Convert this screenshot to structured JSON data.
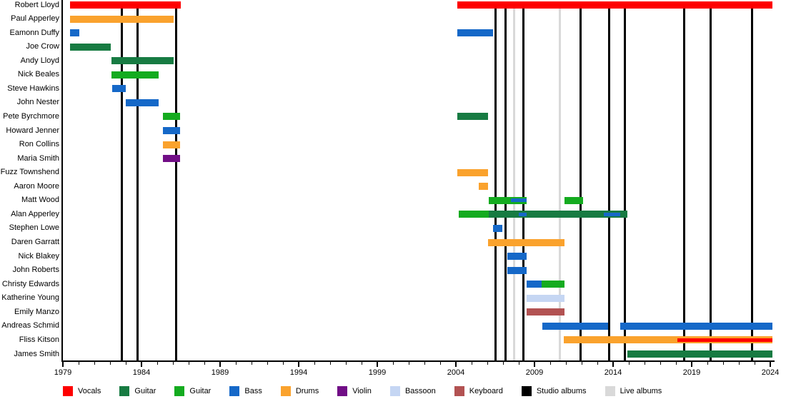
{
  "chart_data": {
    "type": "bar",
    "variant": "band-member-gantt-timeline",
    "title": "",
    "xlabel": "",
    "ylabel": "",
    "grid": false,
    "x_axis": {
      "min": 1979,
      "max": 2024,
      "minor_tick_interval": 1,
      "label_interval": 5,
      "tick_labels": [
        "1979",
        "1984",
        "1989",
        "1994",
        "1999",
        "2004",
        "2009",
        "2014",
        "2019",
        "2024"
      ]
    },
    "colors": {
      "vocals": "#fe0000",
      "guitar_dark": "#177b42",
      "guitar_bright": "#14ab1f",
      "bass": "#1568c8",
      "drums": "#faa22d",
      "violin": "#710e86",
      "bassoon": "#c5d6f3",
      "keyboard": "#b25252",
      "studio": "#000000",
      "live": "#d9d9d9"
    },
    "rows": [
      {
        "name": "Robert Lloyd",
        "bars": [
          {
            "from": 1979.45,
            "to": 1986.5,
            "role": "Vocals",
            "color_key": "vocals"
          },
          {
            "from": 2004.1,
            "to": 2024.15,
            "role": "Vocals",
            "color_key": "vocals"
          }
        ]
      },
      {
        "name": "Paul Apperley",
        "bars": [
          {
            "from": 1979.45,
            "to": 1986.05,
            "role": "Drums",
            "color_key": "drums"
          }
        ]
      },
      {
        "name": "Eamonn Duffy",
        "bars": [
          {
            "from": 1979.45,
            "to": 1980.05,
            "role": "Bass",
            "color_key": "bass"
          },
          {
            "from": 2004.1,
            "to": 2006.35,
            "role": "Bass",
            "color_key": "bass"
          }
        ]
      },
      {
        "name": "Joe Crow",
        "bars": [
          {
            "from": 1979.45,
            "to": 1982.05,
            "role": "Guitar",
            "color_key": "guitar_dark"
          }
        ]
      },
      {
        "name": "Andy Lloyd",
        "bars": [
          {
            "from": 1982.1,
            "to": 1986.05,
            "role": "Guitar",
            "color_key": "guitar_dark"
          }
        ]
      },
      {
        "name": "Nick Beales",
        "bars": [
          {
            "from": 1982.1,
            "to": 1985.1,
            "role": "Guitar",
            "color_key": "guitar_bright"
          }
        ]
      },
      {
        "name": "Steve Hawkins",
        "bars": [
          {
            "from": 1982.15,
            "to": 1983.0,
            "role": "Bass",
            "color_key": "bass"
          }
        ]
      },
      {
        "name": "John Nester",
        "bars": [
          {
            "from": 1983.0,
            "to": 1985.1,
            "role": "Bass",
            "color_key": "bass"
          }
        ]
      },
      {
        "name": "Pete Byrchmore",
        "bars": [
          {
            "from": 1985.35,
            "to": 1986.45,
            "role": "Guitar",
            "color_key": "guitar_bright"
          },
          {
            "from": 2004.1,
            "to": 2006.05,
            "role": "Guitar",
            "color_key": "guitar_dark"
          }
        ]
      },
      {
        "name": "Howard Jenner",
        "bars": [
          {
            "from": 1985.35,
            "to": 1986.45,
            "role": "Bass",
            "color_key": "bass"
          }
        ]
      },
      {
        "name": "Ron Collins",
        "bars": [
          {
            "from": 1985.35,
            "to": 1986.45,
            "role": "Drums",
            "color_key": "drums"
          }
        ]
      },
      {
        "name": "Maria Smith",
        "bars": [
          {
            "from": 1985.35,
            "to": 1986.45,
            "role": "Violin",
            "color_key": "violin"
          }
        ]
      },
      {
        "name": "Fuzz Townshend",
        "bars": [
          {
            "from": 2004.1,
            "to": 2006.05,
            "role": "Drums",
            "color_key": "drums"
          }
        ]
      },
      {
        "name": "Aaron Moore",
        "bars": [
          {
            "from": 2005.45,
            "to": 2006.05,
            "role": "Drums",
            "color_key": "drums"
          }
        ]
      },
      {
        "name": "Matt Wood",
        "bars": [
          {
            "from": 2006.1,
            "to": 2008.5,
            "role": "Guitar",
            "color_key": "guitar_bright"
          },
          {
            "from": 2010.9,
            "to": 2012.1,
            "role": "Guitar",
            "color_key": "guitar_bright"
          }
        ],
        "overlays": [
          {
            "from": 2007.5,
            "to": 2008.5,
            "role": "Bass",
            "color_key": "bass"
          }
        ]
      },
      {
        "name": "Alan Apperley",
        "bars": [
          {
            "from": 2004.2,
            "to": 2006.1,
            "role": "Guitar",
            "color_key": "guitar_bright"
          },
          {
            "from": 2006.1,
            "to": 2014.9,
            "role": "Guitar",
            "color_key": "guitar_dark"
          }
        ],
        "overlays": [
          {
            "from": 2008.0,
            "to": 2008.5,
            "role": "Bass",
            "color_key": "bass"
          },
          {
            "from": 2013.4,
            "to": 2014.45,
            "role": "Bass",
            "color_key": "bass"
          }
        ]
      },
      {
        "name": "Stephen Lowe",
        "bars": [
          {
            "from": 2006.35,
            "to": 2006.95,
            "role": "Bass",
            "color_key": "bass"
          }
        ]
      },
      {
        "name": "Daren Garratt",
        "bars": [
          {
            "from": 2006.05,
            "to": 2010.9,
            "role": "Drums",
            "color_key": "drums"
          }
        ]
      },
      {
        "name": "Nick Blakey",
        "bars": [
          {
            "from": 2007.25,
            "to": 2008.5,
            "role": "Bass",
            "color_key": "bass"
          }
        ]
      },
      {
        "name": "John Roberts",
        "bars": [
          {
            "from": 2007.25,
            "to": 2008.5,
            "role": "Bass",
            "color_key": "bass"
          }
        ]
      },
      {
        "name": "Christy Edwards",
        "bars": [
          {
            "from": 2008.5,
            "to": 2009.45,
            "role": "Bass",
            "color_key": "bass"
          },
          {
            "from": 2009.45,
            "to": 2010.9,
            "role": "Guitar",
            "color_key": "guitar_bright"
          }
        ]
      },
      {
        "name": "Katherine Young",
        "bars": [
          {
            "from": 2008.5,
            "to": 2010.9,
            "role": "Bassoon",
            "color_key": "bassoon"
          }
        ]
      },
      {
        "name": "Emily Manzo",
        "bars": [
          {
            "from": 2008.5,
            "to": 2010.9,
            "role": "Keyboard",
            "color_key": "keyboard"
          }
        ]
      },
      {
        "name": "Andreas Schmid",
        "bars": [
          {
            "from": 2009.5,
            "to": 2013.7,
            "role": "Bass",
            "color_key": "bass"
          },
          {
            "from": 2014.45,
            "to": 2024.15,
            "role": "Bass",
            "color_key": "bass"
          }
        ]
      },
      {
        "name": "Fliss Kitson",
        "bars": [
          {
            "from": 2010.85,
            "to": 2024.15,
            "role": "Drums",
            "color_key": "drums"
          }
        ],
        "overlays": [
          {
            "from": 2018.1,
            "to": 2024.15,
            "role": "Vocals",
            "color_key": "vocals"
          }
        ]
      },
      {
        "name": "James Smith",
        "bars": [
          {
            "from": 2014.9,
            "to": 2024.15,
            "role": "Guitar",
            "color_key": "guitar_dark"
          }
        ]
      }
    ],
    "events": {
      "studio_albums_years": [
        1982.75,
        1983.75,
        1986.2,
        2006.5,
        2007.15,
        2008.3,
        2011.95,
        2013.75,
        2014.75,
        2018.5,
        2020.2,
        2022.85
      ],
      "live_albums_years": [
        2007.7,
        2010.6
      ]
    },
    "legend": {
      "position": "bottom",
      "items": [
        {
          "label": "Vocals",
          "color_key": "vocals"
        },
        {
          "label": "Guitar",
          "color_key": "guitar_dark"
        },
        {
          "label": "Guitar",
          "color_key": "guitar_bright"
        },
        {
          "label": "Bass",
          "color_key": "bass"
        },
        {
          "label": "Drums",
          "color_key": "drums"
        },
        {
          "label": "Violin",
          "color_key": "violin"
        },
        {
          "label": "Bassoon",
          "color_key": "bassoon"
        },
        {
          "label": "Keyboard",
          "color_key": "keyboard"
        },
        {
          "label": "Studio albums",
          "color_key": "studio"
        },
        {
          "label": "Live albums",
          "color_key": "live"
        }
      ]
    }
  }
}
